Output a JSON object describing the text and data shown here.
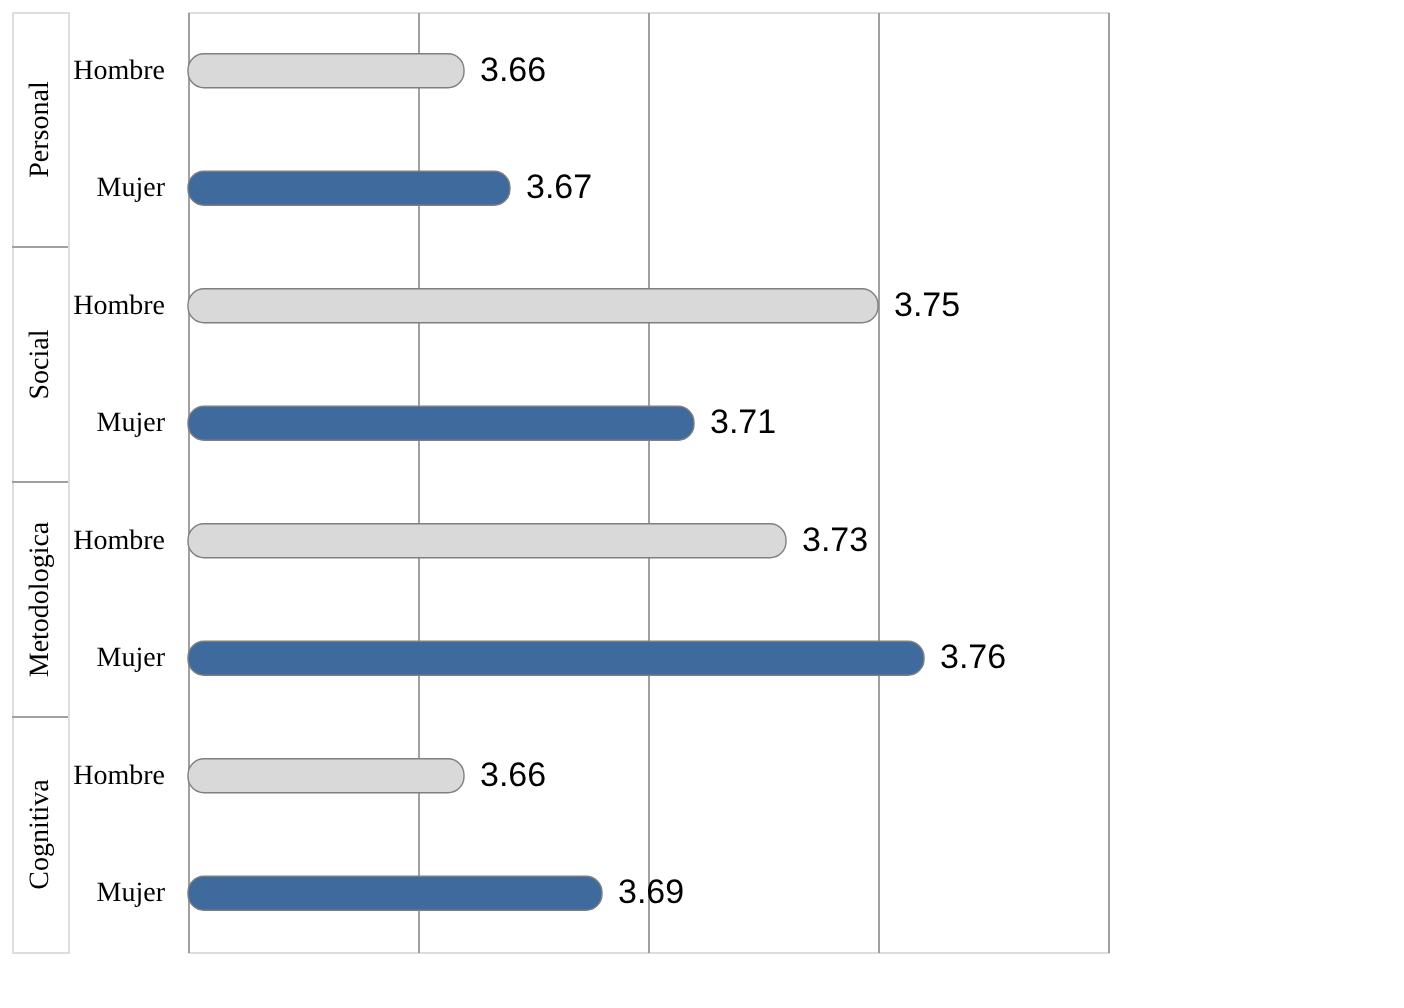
{
  "chart_data": {
    "type": "bar",
    "orientation": "horizontal",
    "categories": [
      "Hombre",
      "Mujer",
      "Hombre",
      "Mujer",
      "Hombre",
      "Mujer",
      "Hombre",
      "Mujer"
    ],
    "values": [
      3.66,
      3.67,
      3.75,
      3.71,
      3.73,
      3.76,
      3.66,
      3.69
    ],
    "colors": [
      "#d9d9d9",
      "#3f6a9e",
      "#d9d9d9",
      "#3f6a9e",
      "#d9d9d9",
      "#3f6a9e",
      "#d9d9d9",
      "#3f6a9e"
    ],
    "xlim": [
      3.6,
      3.8
    ],
    "xticks": [
      {
        "value": 3.6,
        "label": null
      },
      {
        "value": 3.65,
        "label": null
      },
      {
        "value": 3.7,
        "label": null
      },
      {
        "value": 3.75,
        "label": null
      },
      {
        "value": 3.8,
        "label": null
      }
    ],
    "grid": "x",
    "tick_labels": "y",
    "data_labels": true,
    "annotations": [
      "Personal",
      "Social",
      "Metodologica",
      "Cognitiva"
    ]
  }
}
